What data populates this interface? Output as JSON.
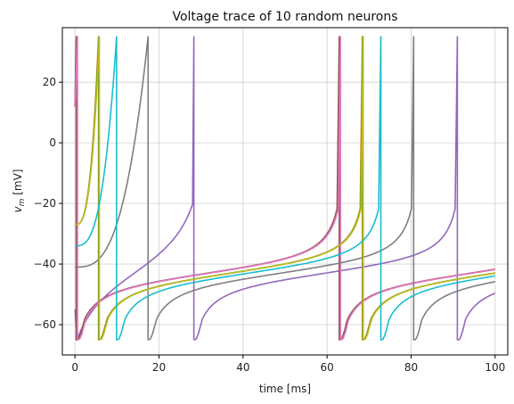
{
  "chart_data": {
    "type": "line",
    "title": "Voltage trace of 10 random neurons",
    "xlabel": "time [ms]",
    "ylabel_main": "v",
    "ylabel_sub": "m",
    "ylabel_unit": " [mV]",
    "xlim": [
      -3,
      103
    ],
    "ylim": [
      -70,
      38
    ],
    "xticks": [
      0,
      20,
      40,
      60,
      80,
      100
    ],
    "yticks": [
      -60,
      -40,
      -20,
      0,
      20
    ],
    "grid": true,
    "legend": "none",
    "spike_peak": 35,
    "reset": -65,
    "series": [
      {
        "color": "#1f77b4",
        "start_v": 12,
        "spikes": [
          0.4,
          63.0
        ]
      },
      {
        "color": "#ff7f0e",
        "start_v": -27,
        "spikes": [
          5.6,
          68.4
        ]
      },
      {
        "color": "#2ca02c",
        "start_v": -27,
        "spikes": [
          5.7,
          68.5
        ]
      },
      {
        "color": "#d62728",
        "start_v": 12,
        "spikes": [
          0.5,
          63.1
        ]
      },
      {
        "color": "#9467bd",
        "start_v": -55,
        "spikes": [
          28.3,
          91.0
        ]
      },
      {
        "color": "#8c564b",
        "start_v": 12,
        "spikes": [
          0.3,
          62.9
        ]
      },
      {
        "color": "#e377c2",
        "start_v": 12,
        "spikes": [
          0.6,
          63.2
        ]
      },
      {
        "color": "#7f7f7f",
        "start_v": -41,
        "spikes": [
          17.4,
          80.6
        ]
      },
      {
        "color": "#bcbd22",
        "start_v": -27,
        "spikes": [
          5.8,
          68.6
        ]
      },
      {
        "color": "#17becf",
        "start_v": -34,
        "spikes": [
          9.9,
          72.8
        ]
      }
    ]
  }
}
